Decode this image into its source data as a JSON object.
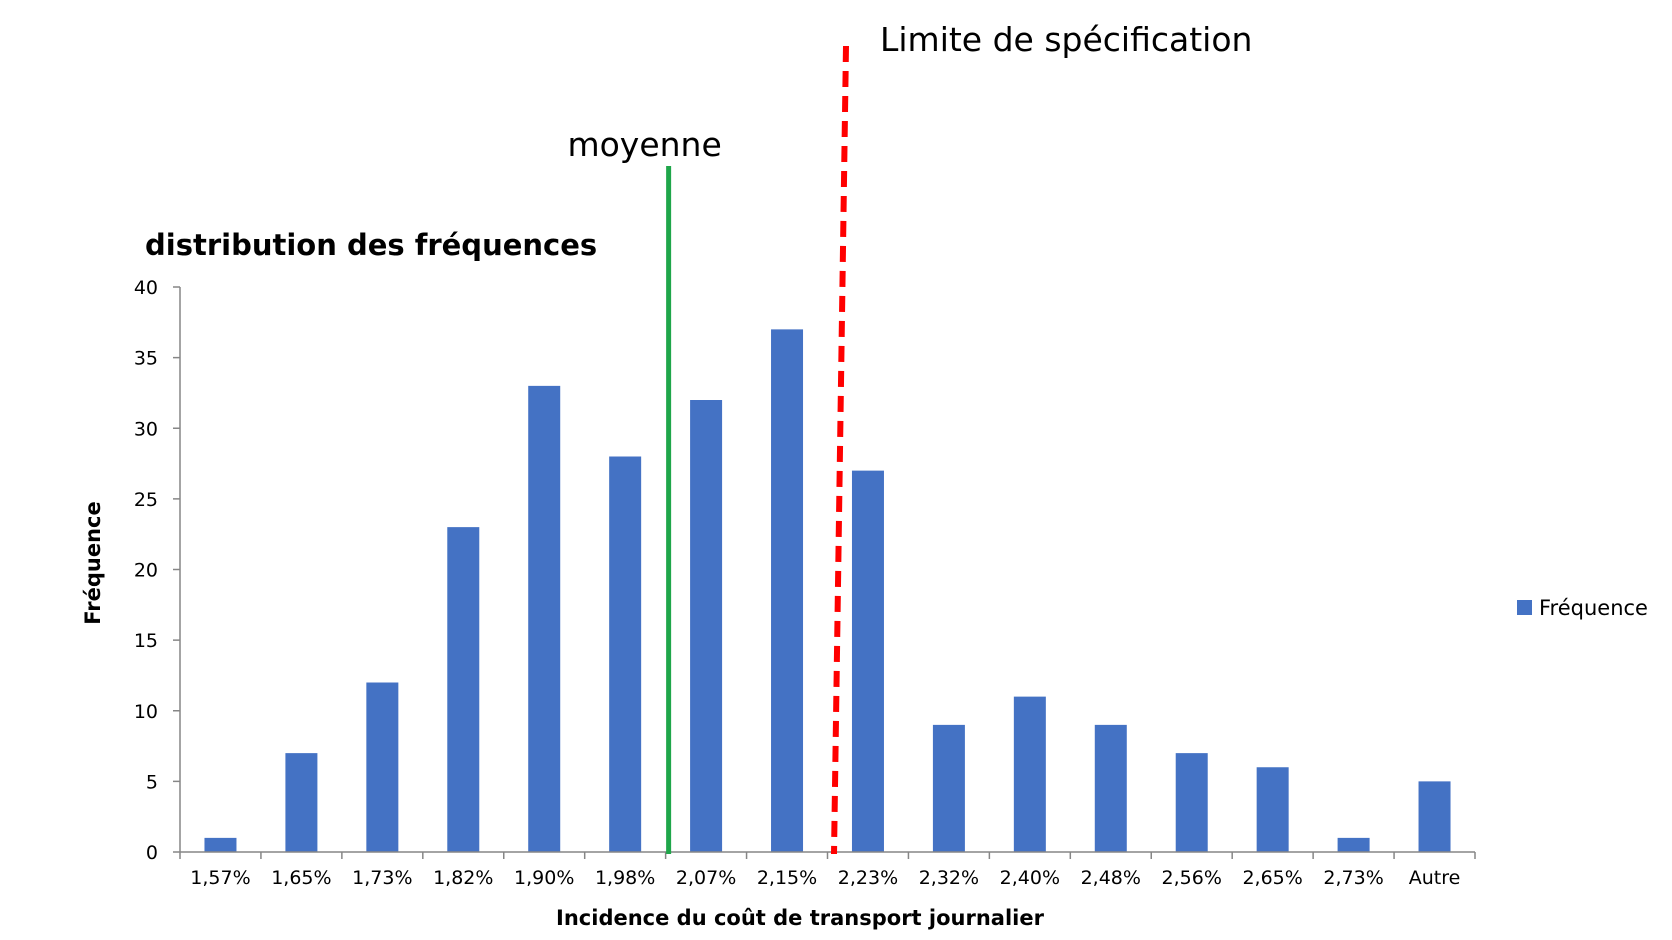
{
  "chart_data": {
    "type": "bar",
    "title": "distribution des fréquences",
    "xlabel": "Incidence du coût de transport journalier",
    "ylabel": "Fréquence",
    "ylim": [
      0,
      40
    ],
    "yticks": [
      0,
      5,
      10,
      15,
      20,
      25,
      30,
      35,
      40
    ],
    "grid": false,
    "legend": {
      "position": "right",
      "entries": [
        "Fréquence"
      ]
    },
    "categories": [
      "1,57%",
      "1,65%",
      "1,73%",
      "1,82%",
      "1,90%",
      "1,98%",
      "2,07%",
      "2,15%",
      "2,23%",
      "2,32%",
      "2,40%",
      "2,48%",
      "2,56%",
      "2,65%",
      "2,73%",
      "Autre"
    ],
    "series": [
      {
        "name": "Fréquence",
        "color": "#4472C4",
        "values": [
          1,
          7,
          12,
          23,
          33,
          28,
          32,
          37,
          27,
          9,
          11,
          9,
          7,
          6,
          1,
          5
        ]
      }
    ],
    "annotations": [
      {
        "label": "moyenne",
        "style": "solid",
        "color": "#1FA64A",
        "x_between": [
          "1,98%",
          "2,07%"
        ]
      },
      {
        "label": "Limite de spécification",
        "style": "dashed",
        "color": "#FF0000",
        "x_between": [
          "2,15%",
          "2,23%"
        ]
      }
    ]
  }
}
